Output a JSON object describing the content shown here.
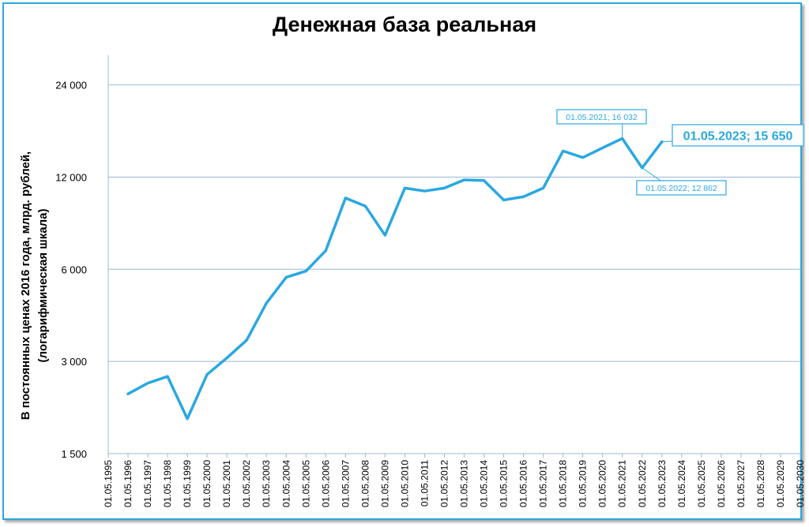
{
  "chart_data": {
    "type": "line",
    "title": "Денежная база реальная",
    "ylabel_line1": "В постоянных ценах 2016 года, млрд. рублей,",
    "ylabel_line2": "(логарифмическая шкала)",
    "xlabel": "",
    "y_scale": "log",
    "ylim": [
      1500,
      30000
    ],
    "y_ticks": [
      1500,
      3000,
      6000,
      12000,
      24000
    ],
    "y_tick_labels": [
      "1 500",
      "3 000",
      "6 000",
      "12 000",
      "24 000"
    ],
    "x_ticks": [
      "01.05.1995",
      "01.05.1996",
      "01.05.1997",
      "01.05.1998",
      "01.05.1999",
      "01.05.2000",
      "01.05.2001",
      "01.05.2002",
      "01.05.2003",
      "01.05.2004",
      "01.05.2005",
      "01.05.2006",
      "01.05.2007",
      "01.05.2008",
      "01.05.2009",
      "01.05.2010",
      "01.05.2011",
      "01.05.2012",
      "01.05.2013",
      "01.05.2014",
      "01.05.2015",
      "01.05.2016",
      "01.05.2017",
      "01.05.2018",
      "01.05.2019",
      "01.05.2020",
      "01.05.2021",
      "01.05.2022",
      "01.05.2023",
      "01.05.2024",
      "01.05.2025",
      "01.05.2026",
      "01.05.2027",
      "01.05.2028",
      "01.05.2029",
      "01.05.2030"
    ],
    "grid": true,
    "series": [
      {
        "color": "#2aa8e0",
        "x": [
          "01.05.1996",
          "01.05.1997",
          "01.05.1998",
          "01.05.1999",
          "01.05.2000",
          "01.05.2001",
          "01.05.2002",
          "01.05.2003",
          "01.05.2004",
          "01.05.2005",
          "01.05.2006",
          "01.05.2007",
          "01.05.2008",
          "01.05.2009",
          "01.05.2010",
          "01.05.2011",
          "01.05.2012",
          "01.05.2013",
          "01.05.2014",
          "01.05.2015",
          "01.05.2016",
          "01.05.2017",
          "01.05.2018",
          "01.05.2019",
          "01.05.2020",
          "01.05.2021",
          "01.05.2022",
          "01.05.2023"
        ],
        "values": [
          2350,
          2550,
          2680,
          1950,
          2720,
          3080,
          3520,
          4650,
          5650,
          5920,
          6900,
          10250,
          9650,
          7750,
          11050,
          10800,
          11050,
          11750,
          11700,
          10100,
          10350,
          11050,
          14600,
          13900,
          14950,
          16032,
          12862,
          15650
        ]
      }
    ],
    "annotations": [
      {
        "x": "01.05.2021",
        "text": "01.05.2021;  16 032",
        "size": "small"
      },
      {
        "x": "01.05.2022",
        "text": "01.05.2022;  12 862",
        "size": "small"
      },
      {
        "x": "01.05.2023",
        "text": "01.05.2023;  15 650",
        "size": "large"
      }
    ]
  }
}
